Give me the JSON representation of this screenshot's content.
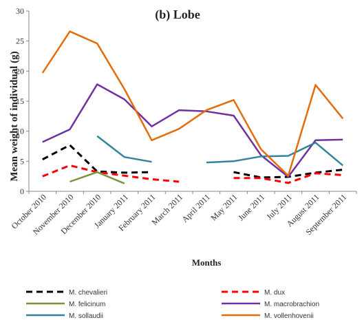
{
  "chart_data": {
    "type": "line",
    "title": "(b) Lobe",
    "xlabel": "Months",
    "ylabel": "Mean weight of individual (g)",
    "ylim": [
      0,
      30
    ],
    "yticks": [
      "0",
      "5",
      "10",
      "15",
      "20",
      "25",
      "30"
    ],
    "grid": false,
    "legend_position": "bottom",
    "categories": [
      "October 2010",
      "November 2010",
      "December 2010",
      "January 2011",
      "February 2011",
      "March 2011",
      "April 2011",
      "May 2011",
      "June 2011",
      "July 2011",
      "August 2011",
      "September 2011"
    ],
    "series": [
      {
        "name": "M. chevalieri",
        "color": "#000000",
        "dash": true,
        "values": [
          5.3,
          7.7,
          3.3,
          3.1,
          3.2,
          null,
          null,
          3.2,
          2.3,
          2.4,
          3.1,
          3.6
        ]
      },
      {
        "name": "M. dux",
        "color": "#ff0000",
        "dash": true,
        "values": [
          2.5,
          4.3,
          3.2,
          2.6,
          2.0,
          1.6,
          null,
          2.2,
          2.2,
          1.4,
          3.0,
          2.7
        ]
      },
      {
        "name": "M. felicinum",
        "color": "#77933c",
        "dash": false,
        "values": [
          null,
          1.6,
          3.2,
          1.3,
          null,
          null,
          null,
          null,
          null,
          null,
          null,
          null
        ]
      },
      {
        "name": "M. macrobrachion",
        "color": "#7030a0",
        "dash": false,
        "values": [
          8.2,
          10.3,
          17.8,
          15.3,
          10.8,
          13.5,
          13.3,
          12.6,
          6.0,
          2.4,
          8.5,
          8.6
        ]
      },
      {
        "name": "M. sollaudii",
        "color": "#31849b",
        "dash": false,
        "values": [
          null,
          null,
          9.2,
          5.7,
          4.9,
          null,
          4.8,
          5.0,
          5.8,
          5.9,
          8.1,
          4.3
        ]
      },
      {
        "name": "M. vollenhovenii",
        "color": "#e46c0a",
        "dash": false,
        "values": [
          19.7,
          26.6,
          24.6,
          17.0,
          8.5,
          10.4,
          13.5,
          15.2,
          7.0,
          2.6,
          17.7,
          12.1
        ]
      }
    ]
  }
}
